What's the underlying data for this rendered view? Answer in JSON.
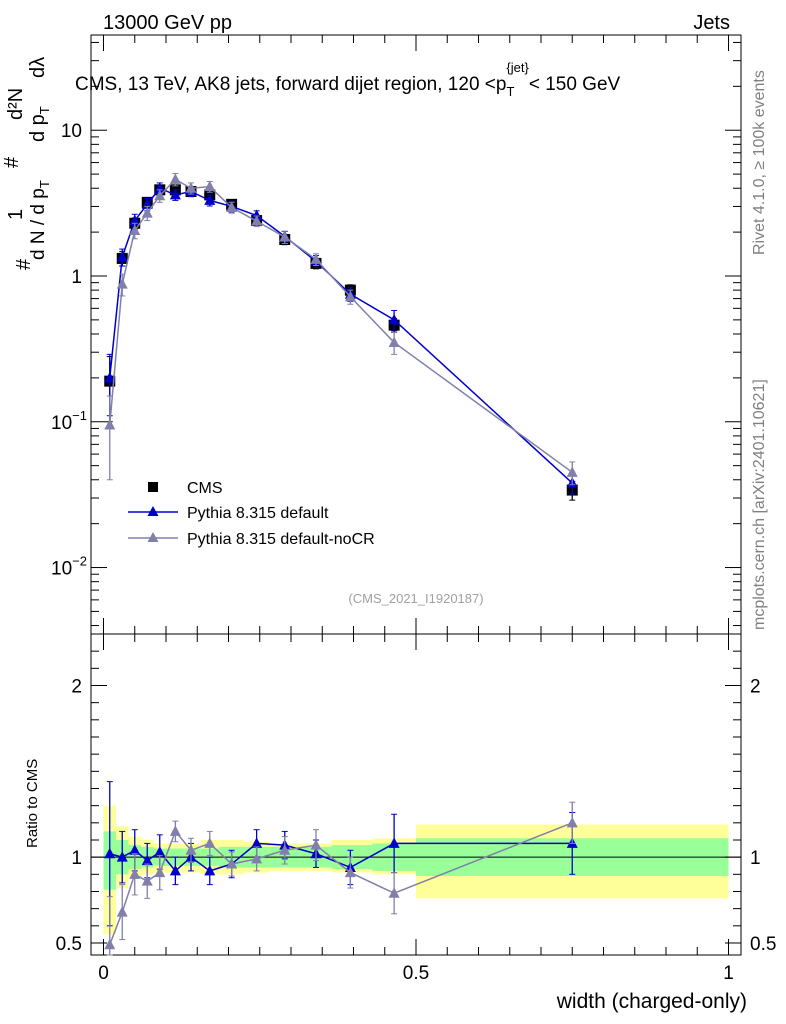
{
  "header": {
    "left": "13000 GeV pp",
    "right": "Jets"
  },
  "side_labels": {
    "rivet": "Rivet 4.1.0, ≥ 100k events",
    "mcplots": "mcplots.cern.ch [arXiv:2401.10621]"
  },
  "colors": {
    "cms": "#000000",
    "default": "#0000cc",
    "noCR": "#8080aa",
    "band_inner": "#99ff99",
    "band_outer": "#ffff99"
  },
  "chart_data": [
    {
      "type": "scatter",
      "panel": "main",
      "title": "CMS, 13 TeV, AK8 jets, forward dijet region, 120 <p_T^{jet}< 150 GeV",
      "title_parts": {
        "pre": "CMS, 13 TeV, AK8 jets, forward dijet region, 120 <p",
        "sub": "T",
        "sup": "{jet}",
        "post": "< 150 GeV"
      },
      "ylabel": "1/(dN/dp_T) d^2N/(dp_T dλ)",
      "ylabel_parts": {
        "one": "1",
        "num": "d²N",
        "den": "d N / d p",
        "den2": "d p",
        "sub": "T",
        "lambda": "dλ",
        "hash": "#"
      },
      "yscale": "log",
      "xlim": [
        -0.02,
        1.02
      ],
      "ylim": [
        0.0035,
        45
      ],
      "yticks": [
        {
          "value": 0.1,
          "base": "10",
          "exp": "−1"
        },
        {
          "value": 1,
          "base": "1",
          "exp": ""
        },
        {
          "value": 10,
          "base": "10",
          "exp": ""
        },
        {
          "value": 0.01,
          "base": "10",
          "exp": "−2"
        }
      ],
      "watermark": "(CMS_2021_I1920187)",
      "legend": [
        "CMS",
        "Pythia 8.315 default",
        "Pythia 8.315 default-noCR"
      ],
      "legend_position": "left-middle",
      "series": [
        {
          "name": "CMS",
          "marker": "square",
          "x": [
            0.01,
            0.03,
            0.05,
            0.07,
            0.09,
            0.115,
            0.14,
            0.17,
            0.205,
            0.245,
            0.29,
            0.34,
            0.395,
            0.465,
            0.75
          ],
          "y": [
            0.19,
            1.32,
            2.3,
            3.2,
            3.9,
            3.9,
            3.8,
            3.6,
            3.1,
            2.4,
            1.78,
            1.22,
            0.8,
            0.46,
            0.034
          ],
          "err": [
            0.09,
            0.15,
            0.2,
            0.25,
            0.3,
            0.25,
            0.25,
            0.22,
            0.2,
            0.18,
            0.14,
            0.1,
            0.07,
            0.05,
            0.005
          ]
        },
        {
          "name": "Pythia 8.315 default",
          "marker": "triangle",
          "x": [
            0.01,
            0.03,
            0.05,
            0.07,
            0.09,
            0.115,
            0.14,
            0.17,
            0.205,
            0.245,
            0.29,
            0.34,
            0.395,
            0.465,
            0.75
          ],
          "y": [
            0.2,
            1.35,
            2.4,
            3.1,
            4.0,
            3.6,
            3.8,
            3.3,
            3.0,
            2.6,
            1.87,
            1.26,
            0.75,
            0.5,
            0.038
          ],
          "err": [
            0.09,
            0.18,
            0.25,
            0.3,
            0.35,
            0.3,
            0.3,
            0.28,
            0.25,
            0.2,
            0.15,
            0.12,
            0.08,
            0.08,
            0.006
          ]
        },
        {
          "name": "Pythia 8.315 default-noCR",
          "marker": "triangle",
          "x": [
            0.01,
            0.03,
            0.05,
            0.07,
            0.09,
            0.115,
            0.14,
            0.17,
            0.205,
            0.245,
            0.29,
            0.34,
            0.395,
            0.465,
            0.75
          ],
          "y": [
            0.095,
            0.88,
            2.05,
            2.7,
            3.55,
            4.6,
            4.0,
            4.1,
            2.95,
            2.38,
            1.85,
            1.3,
            0.72,
            0.35,
            0.045
          ],
          "err": [
            0.055,
            0.15,
            0.25,
            0.3,
            0.35,
            0.45,
            0.35,
            0.35,
            0.25,
            0.2,
            0.18,
            0.12,
            0.08,
            0.06,
            0.008
          ]
        }
      ]
    },
    {
      "type": "scatter",
      "panel": "ratio",
      "ylabel": "Ratio to CMS",
      "xlabel": "width (charged-only)",
      "xlim": [
        -0.02,
        1.02
      ],
      "ylim": [
        0.43,
        2.3
      ],
      "xticks": [
        {
          "value": 0,
          "label": "0"
        },
        {
          "value": 0.5,
          "label": "0.5"
        },
        {
          "value": 1,
          "label": "1"
        }
      ],
      "yticks": [
        {
          "value": 0.5,
          "label": "0.5"
        },
        {
          "value": 1,
          "label": "1"
        },
        {
          "value": 2,
          "label": "2"
        }
      ],
      "bands": [
        {
          "x0": 0.0,
          "x1": 0.02,
          "inner": [
            0.81,
            1.15
          ],
          "outer": [
            0.55,
            1.3
          ]
        },
        {
          "x0": 0.02,
          "x1": 0.04,
          "inner": [
            0.9,
            1.1
          ],
          "outer": [
            0.82,
            1.18
          ]
        },
        {
          "x0": 0.04,
          "x1": 0.06,
          "inner": [
            0.93,
            1.07
          ],
          "outer": [
            0.88,
            1.12
          ]
        },
        {
          "x0": 0.06,
          "x1": 0.08,
          "inner": [
            0.94,
            1.06
          ],
          "outer": [
            0.9,
            1.1
          ]
        },
        {
          "x0": 0.08,
          "x1": 0.1,
          "inner": [
            0.95,
            1.05
          ],
          "outer": [
            0.91,
            1.08
          ]
        },
        {
          "x0": 0.1,
          "x1": 0.13,
          "inner": [
            0.95,
            1.05
          ],
          "outer": [
            0.91,
            1.08
          ]
        },
        {
          "x0": 0.13,
          "x1": 0.155,
          "inner": [
            0.95,
            1.05
          ],
          "outer": [
            0.91,
            1.08
          ]
        },
        {
          "x0": 0.155,
          "x1": 0.185,
          "inner": [
            0.95,
            1.05
          ],
          "outer": [
            0.9,
            1.1
          ]
        },
        {
          "x0": 0.185,
          "x1": 0.225,
          "inner": [
            0.94,
            1.06
          ],
          "outer": [
            0.9,
            1.1
          ]
        },
        {
          "x0": 0.225,
          "x1": 0.265,
          "inner": [
            0.94,
            1.06
          ],
          "outer": [
            0.91,
            1.09
          ]
        },
        {
          "x0": 0.265,
          "x1": 0.315,
          "inner": [
            0.94,
            1.06
          ],
          "outer": [
            0.92,
            1.08
          ]
        },
        {
          "x0": 0.315,
          "x1": 0.365,
          "inner": [
            0.94,
            1.06
          ],
          "outer": [
            0.92,
            1.08
          ]
        },
        {
          "x0": 0.365,
          "x1": 0.43,
          "inner": [
            0.93,
            1.07
          ],
          "outer": [
            0.91,
            1.1
          ]
        },
        {
          "x0": 0.43,
          "x1": 0.5,
          "inner": [
            0.92,
            1.08
          ],
          "outer": [
            0.9,
            1.11
          ]
        },
        {
          "x0": 0.5,
          "x1": 1.0,
          "inner": [
            0.89,
            1.11
          ],
          "outer": [
            0.76,
            1.19
          ]
        }
      ],
      "series": [
        {
          "name": "Pythia 8.315 default",
          "marker": "triangle",
          "x": [
            0.01,
            0.03,
            0.05,
            0.07,
            0.09,
            0.115,
            0.14,
            0.17,
            0.205,
            0.245,
            0.29,
            0.34,
            0.395,
            0.465,
            0.75
          ],
          "y": [
            1.02,
            1.0,
            1.04,
            0.98,
            1.03,
            0.92,
            1.0,
            0.92,
            0.96,
            1.08,
            1.07,
            1.02,
            0.94,
            1.08,
            1.08
          ],
          "err": [
            0.42,
            0.15,
            0.12,
            0.1,
            0.1,
            0.08,
            0.08,
            0.08,
            0.08,
            0.08,
            0.08,
            0.08,
            0.1,
            0.17,
            0.18
          ]
        },
        {
          "name": "Pythia 8.315 default-noCR",
          "marker": "triangle",
          "x": [
            0.01,
            0.03,
            0.05,
            0.07,
            0.09,
            0.115,
            0.14,
            0.17,
            0.205,
            0.245,
            0.29,
            0.34,
            0.395,
            0.465,
            0.75
          ],
          "y": [
            0.49,
            0.68,
            0.9,
            0.86,
            0.91,
            1.15,
            1.04,
            1.08,
            0.96,
            0.99,
            1.04,
            1.07,
            0.91,
            0.79,
            1.2
          ],
          "err": [
            0.28,
            0.16,
            0.12,
            0.1,
            0.1,
            0.06,
            0.07,
            0.07,
            0.07,
            0.07,
            0.08,
            0.09,
            0.09,
            0.12,
            0.12
          ]
        }
      ]
    }
  ]
}
